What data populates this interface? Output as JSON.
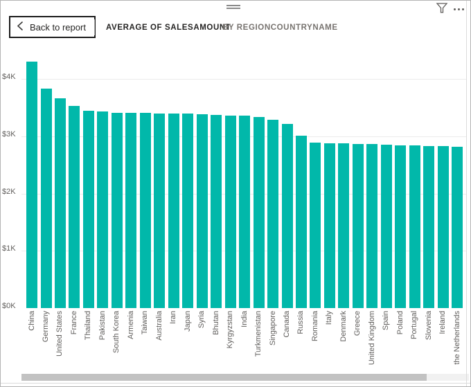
{
  "window": {
    "back_button_label": "Back to report",
    "title": "AVERAGE OF SALESAMOUNT",
    "subtitle": "BY REGIONCOUNTRYNAME"
  },
  "colors": {
    "accent_teal": "#01B8AA",
    "text_dark": "#252423",
    "text_muted": "#605E5C",
    "gridline": "#ECECEC"
  },
  "icons": {
    "back_chevron": "chevron-left",
    "top_center": "drag-handle",
    "top_right_1": "filter-funnel",
    "top_right_2": "more-options-ellipsis"
  },
  "chart_data": {
    "type": "bar",
    "title": "AVERAGE OF SALESAMOUNT BY REGIONCOUNTRYNAME",
    "xlabel": "",
    "ylabel": "",
    "ylim": [
      0,
      4400
    ],
    "grid": "horizontal",
    "legend": "none",
    "bar_color": "#01B8AA",
    "y_tick_labels": [
      "$0K",
      "$1K",
      "$2K",
      "$3K",
      "$4K"
    ],
    "y_tick_values": [
      0,
      1000,
      2000,
      3000,
      4000
    ],
    "categories": [
      "China",
      "Germany",
      "United States",
      "France",
      "Thailand",
      "Pakistan",
      "South Korea",
      "Armenia",
      "Taiwan",
      "Australia",
      "Iran",
      "Japan",
      "Syria",
      "Bhutan",
      "Kyrgyzstan",
      "India",
      "Turkmenistan",
      "Singapore",
      "Canada",
      "Russia",
      "Romania",
      "Italy",
      "Denmark",
      "Greece",
      "United Kingdom",
      "Spain",
      "Poland",
      "Portugal",
      "Slovenia",
      "Ireland",
      "the Netherlands"
    ],
    "values": [
      4310,
      3840,
      3670,
      3530,
      3450,
      3430,
      3415,
      3410,
      3410,
      3405,
      3400,
      3400,
      3390,
      3370,
      3365,
      3360,
      3340,
      3290,
      3220,
      3010,
      2890,
      2885,
      2875,
      2870,
      2865,
      2850,
      2845,
      2840,
      2835,
      2830,
      2820
    ]
  }
}
